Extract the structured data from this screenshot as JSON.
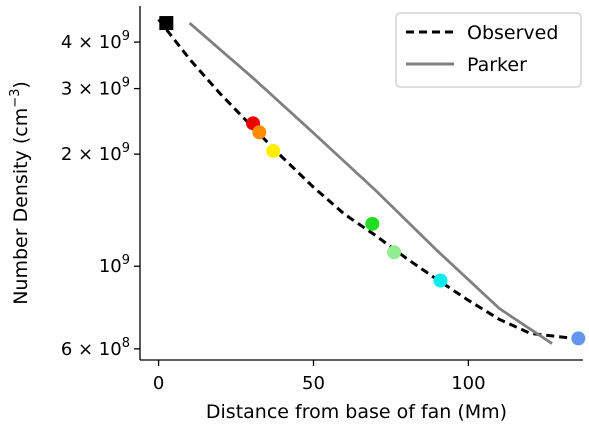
{
  "chart_data": {
    "type": "line",
    "xlabel": "Distance from base of fan (Mm)",
    "ylabel_main": "Number Density (cm",
    "ylabel_sup": "−3",
    "ylabel_close": ")",
    "xlim": [
      -6,
      137
    ],
    "ylim": [
      560000000,
      5000000000
    ],
    "yscale": "log",
    "x_ticks": [
      {
        "value": 0,
        "label": "0"
      },
      {
        "value": 50,
        "label": "50"
      },
      {
        "value": 100,
        "label": "100"
      }
    ],
    "y_ticks": [
      {
        "value": 600000000,
        "mant": "6",
        "exp": "8"
      },
      {
        "value": 1000000000,
        "mant": "",
        "exp": "9"
      },
      {
        "value": 2000000000,
        "mant": "2",
        "exp": "9"
      },
      {
        "value": 3000000000,
        "mant": "3",
        "exp": "9"
      },
      {
        "value": 4000000000,
        "mant": "4",
        "exp": "9"
      }
    ],
    "grid": false,
    "legend_position": "top-right",
    "series": [
      {
        "name": "Observed",
        "style": "dashed",
        "color": "#000000",
        "x": [
          0,
          10,
          20,
          30,
          40,
          50,
          60,
          70,
          80,
          90,
          100,
          110,
          120,
          134
        ],
        "y": [
          4600000000,
          3600000000,
          2900000000,
          2380000000,
          1960000000,
          1630000000,
          1380000000,
          1210000000,
          1050000000,
          920000000,
          810000000,
          720000000,
          660000000,
          640000000
        ]
      },
      {
        "name": "Parker",
        "style": "solid",
        "color": "#808080",
        "x": [
          10,
          30,
          50,
          70,
          90,
          110,
          127
        ],
        "y": [
          4500000000,
          3230000000,
          2280000000,
          1600000000,
          1100000000,
          770000000,
          620000000
        ]
      }
    ],
    "points": [
      {
        "x": 2.5,
        "y": 4500000000,
        "color": "#000000",
        "marker": "square"
      },
      {
        "x": 30.5,
        "y": 2420000000,
        "color": "#ee0000",
        "marker": "circle"
      },
      {
        "x": 32.5,
        "y": 2290000000,
        "color": "#ff8c00",
        "marker": "circle"
      },
      {
        "x": 37.0,
        "y": 2040000000,
        "color": "#ffee00",
        "marker": "circle"
      },
      {
        "x": 69.0,
        "y": 1300000000,
        "color": "#22dd22",
        "marker": "circle"
      },
      {
        "x": 76.0,
        "y": 1090000000,
        "color": "#90ee90",
        "marker": "circle"
      },
      {
        "x": 91.0,
        "y": 915000000,
        "color": "#00eeee",
        "marker": "circle"
      },
      {
        "x": 135.5,
        "y": 640000000,
        "color": "#6495ed",
        "marker": "circle"
      }
    ]
  }
}
